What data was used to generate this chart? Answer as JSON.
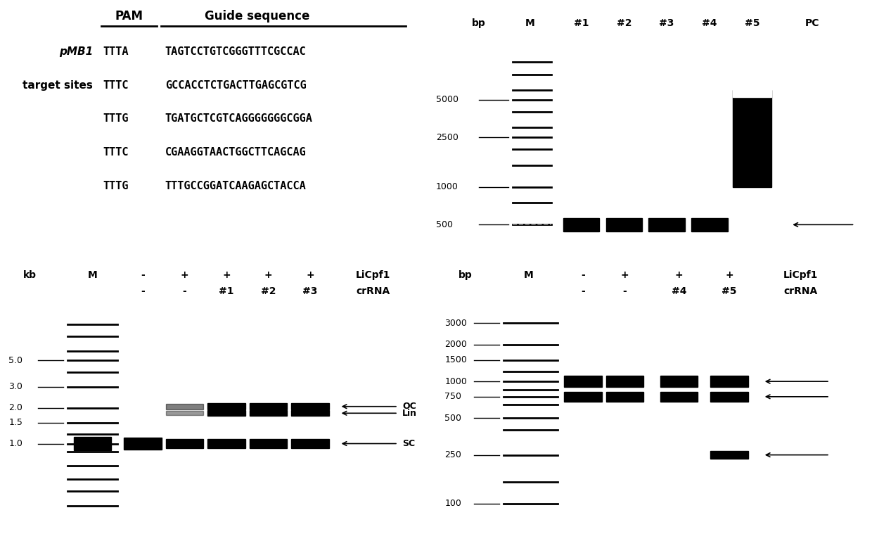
{
  "bg_color": "#ffffff",
  "panel_A": {
    "pam_header": "PAM",
    "guide_header": "Guide sequence",
    "label1": "pMB1",
    "label2": "target sites",
    "sequences": [
      {
        "pam": "TTTA",
        "guide": "TAGTCCTGTCGGGTTTCGCCAC"
      },
      {
        "pam": "TTTC",
        "guide": "GCCACCTCTGACTTGAGCGTCG"
      },
      {
        "pam": "TTTG",
        "guide": "TGATGCTCGTCAGGGGGGGCGGA"
      },
      {
        "pam": "TTTC",
        "guide": "CGAAGGTAACTGGCTTCAGCAG"
      },
      {
        "pam": "TTTG",
        "guide": "TTTGCCGGATCAAGAGCTACCA"
      }
    ]
  },
  "panel_B": {
    "unit_label": "bp",
    "col_labels": [
      "M",
      "#1",
      "#2",
      "#3",
      "#4",
      "#5",
      "PC"
    ],
    "marker_bps": [
      10000,
      8000,
      6000,
      5000,
      4000,
      3000,
      2500,
      2000,
      1500,
      1000,
      750,
      500
    ],
    "size_labels": [
      5000,
      2500,
      1000,
      500
    ],
    "sample_band_bp": 500,
    "sample_lanes": [
      1,
      2,
      3,
      4
    ],
    "smear_lane": 5,
    "smear_bp_low": 1000,
    "smear_bp_high": 6000,
    "arrow_bp": 500,
    "gel_bp_min": 350,
    "gel_bp_max": 15000
  },
  "panel_C": {
    "unit_label": "kb",
    "row1": [
      "M",
      "-",
      "+",
      "+",
      "+",
      "+",
      "LiCpf1"
    ],
    "row2": [
      "",
      "-",
      "-",
      "#1",
      "#2",
      "#3",
      "crRNA"
    ],
    "marker_kbs": [
      10,
      8,
      6,
      5,
      4,
      3,
      2,
      1.5,
      1.2,
      1.0,
      0.85,
      0.65,
      0.5,
      0.4,
      0.3
    ],
    "size_labels": [
      5.0,
      3.0,
      2.0,
      1.5,
      1.0
    ],
    "sc_kb": 1.0,
    "oc_kb": 2.05,
    "lin_kb": 1.8,
    "gel_kb_min": 0.25,
    "gel_kb_max": 12.0,
    "right_labels": [
      "OC",
      "Lin",
      "SC"
    ]
  },
  "panel_D": {
    "unit_label": "bp",
    "row1": [
      "M",
      "-",
      "+",
      "+",
      "+",
      "LiCpf1"
    ],
    "row2": [
      "",
      "-",
      "-",
      "#4",
      "#5",
      "crRNA"
    ],
    "marker_bps": [
      3000,
      2000,
      1500,
      1200,
      1000,
      850,
      750,
      650,
      500,
      400,
      250,
      150,
      100
    ],
    "size_labels": [
      3000,
      2000,
      1500,
      1000,
      750,
      500,
      250,
      100
    ],
    "band1_bp": 1000,
    "band2_bp": 750,
    "band3_bp": 250,
    "gel_bp_min": 80,
    "gel_bp_max": 4500
  }
}
